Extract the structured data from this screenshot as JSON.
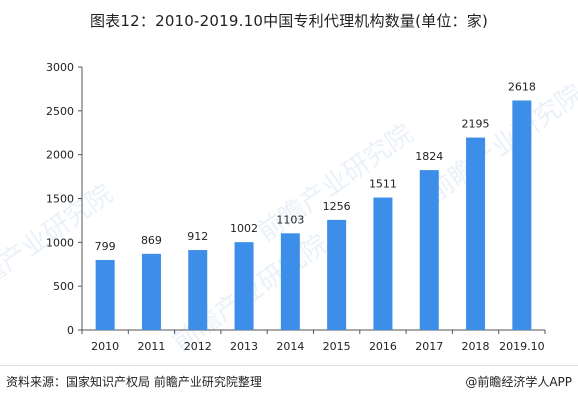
{
  "title": "图表12：2010-2019.10中国专利代理机构数量(单位：家)",
  "source": "资料来源：国家知识产权局 前瞻产业研究院整理",
  "credit": "@前瞻经济学人APP",
  "watermark_text": "前瞻产业研究院",
  "colors": {
    "bar": "#3d8ee8",
    "axis": "#555555"
  },
  "chart_data": {
    "type": "bar",
    "categories": [
      "2010",
      "2011",
      "2012",
      "2013",
      "2014",
      "2015",
      "2016",
      "2017",
      "2018",
      "2019.10"
    ],
    "values": [
      799,
      869,
      912,
      1002,
      1103,
      1256,
      1511,
      1824,
      2195,
      2618
    ],
    "ylim": [
      0,
      3000
    ],
    "yticks": [
      0,
      500,
      1000,
      1500,
      2000,
      2500,
      3000
    ],
    "title": "图表12：2010-2019.10中国专利代理机构数量(单位：家)",
    "xlabel": "",
    "ylabel": "",
    "grid": false
  }
}
